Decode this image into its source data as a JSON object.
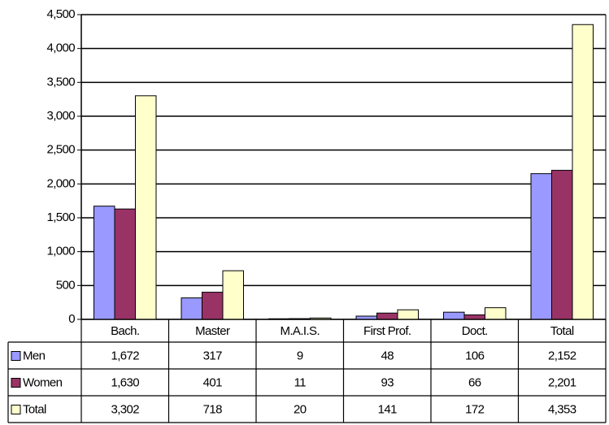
{
  "chart_data": {
    "type": "bar",
    "categories": [
      "Bach.",
      "Master",
      "M.A.I.S.",
      "First Prof.",
      "Doct.",
      "Total"
    ],
    "series": [
      {
        "name": "Men",
        "color": "#9999ff",
        "values": [
          1672,
          317,
          9,
          48,
          106,
          2152
        ],
        "value_labels": [
          "1,672",
          "317",
          "9",
          "48",
          "106",
          "2,152"
        ]
      },
      {
        "name": "Women",
        "color": "#993366",
        "values": [
          1630,
          401,
          11,
          93,
          66,
          2201
        ],
        "value_labels": [
          "1,630",
          "401",
          "11",
          "93",
          "66",
          "2,201"
        ]
      },
      {
        "name": "Total",
        "color": "#ffffcc",
        "values": [
          3302,
          718,
          20,
          141,
          172,
          4353
        ],
        "value_labels": [
          "3,302",
          "718",
          "20",
          "141",
          "172",
          "4,353"
        ]
      }
    ],
    "ylim": [
      0,
      4500
    ],
    "yticks": [
      0,
      500,
      {
        "value": 1000,
        "label": "1,000"
      },
      {
        "value": 1500,
        "label": "1,500"
      },
      {
        "value": 2000,
        "label": "2,000"
      },
      {
        "value": 2500,
        "label": "2,500"
      },
      {
        "value": 3000,
        "label": "3,000"
      },
      {
        "value": 3500,
        "label": "3,500"
      },
      {
        "value": 4000,
        "label": "4,000"
      },
      {
        "value": 4500,
        "label": "4,500"
      }
    ],
    "grid": true
  }
}
